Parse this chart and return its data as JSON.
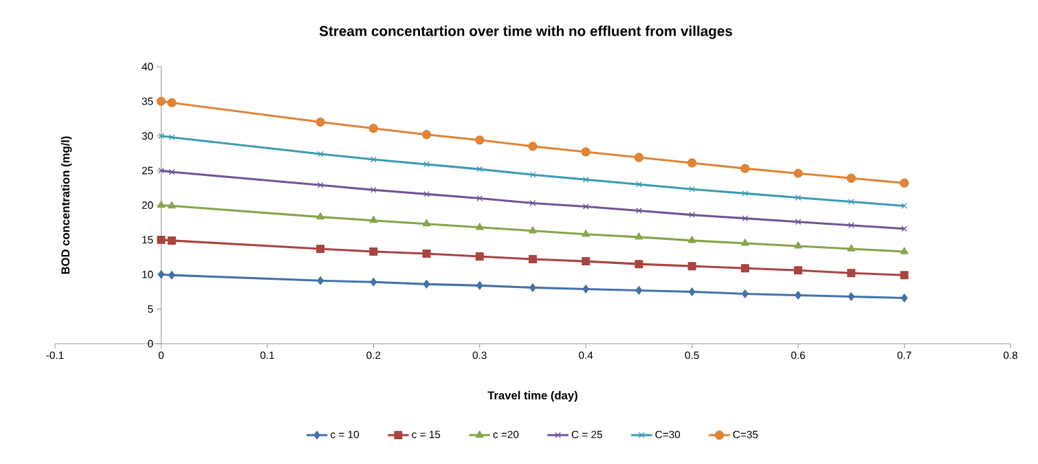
{
  "chart_data": {
    "type": "line",
    "title": "Stream concentartion over time with no effluent from villages",
    "xlabel": "Travel time (day)",
    "ylabel": "BOD concentration (mg/l)",
    "x": [
      0,
      0.01,
      0.15,
      0.2,
      0.25,
      0.3,
      0.35,
      0.4,
      0.45,
      0.5,
      0.55,
      0.6,
      0.65,
      0.7
    ],
    "series": [
      {
        "name": "c = 10",
        "color": "#4472a8",
        "marker": "diamond",
        "values": [
          10,
          9.9,
          9.1,
          8.9,
          8.6,
          8.4,
          8.1,
          7.9,
          7.7,
          7.5,
          7.2,
          7.0,
          6.8,
          6.6
        ]
      },
      {
        "name": "c = 15",
        "color": "#a94441",
        "marker": "square",
        "values": [
          15,
          14.9,
          13.7,
          13.3,
          13.0,
          12.6,
          12.2,
          11.9,
          11.5,
          11.2,
          10.9,
          10.6,
          10.2,
          9.9
        ]
      },
      {
        "name": "c =20",
        "color": "#87a54b",
        "marker": "triangle",
        "values": [
          20,
          19.9,
          18.3,
          17.8,
          17.3,
          16.8,
          16.3,
          15.8,
          15.4,
          14.9,
          14.5,
          14.1,
          13.7,
          13.3
        ]
      },
      {
        "name": "C = 25",
        "color": "#6f5595",
        "marker": "cross",
        "values": [
          25,
          24.8,
          22.9,
          22.2,
          21.6,
          21.0,
          20.3,
          19.8,
          19.2,
          18.6,
          18.1,
          17.6,
          17.1,
          16.6
        ]
      },
      {
        "name": "C=30",
        "color": "#3d9bb2",
        "marker": "cross",
        "values": [
          30,
          29.8,
          27.4,
          26.6,
          25.9,
          25.2,
          24.4,
          23.7,
          23.0,
          22.3,
          21.7,
          21.1,
          20.5,
          19.9
        ]
      },
      {
        "name": "C=35",
        "color": "#e08436",
        "marker": "circle",
        "values": [
          35,
          34.8,
          32.0,
          31.1,
          30.2,
          29.4,
          28.5,
          27.7,
          26.9,
          26.1,
          25.3,
          24.6,
          23.9,
          23.2
        ]
      }
    ],
    "xlim": [
      -0.1,
      0.8
    ],
    "xticks": [
      -0.1,
      0,
      0.1,
      0.2,
      0.3,
      0.4,
      0.5,
      0.6,
      0.7,
      0.8
    ],
    "ylim": [
      0,
      40
    ],
    "yticks": [
      0,
      5,
      10,
      15,
      20,
      25,
      30,
      35,
      40
    ],
    "grid": false,
    "legend": "bottom",
    "line_style": "solid"
  }
}
